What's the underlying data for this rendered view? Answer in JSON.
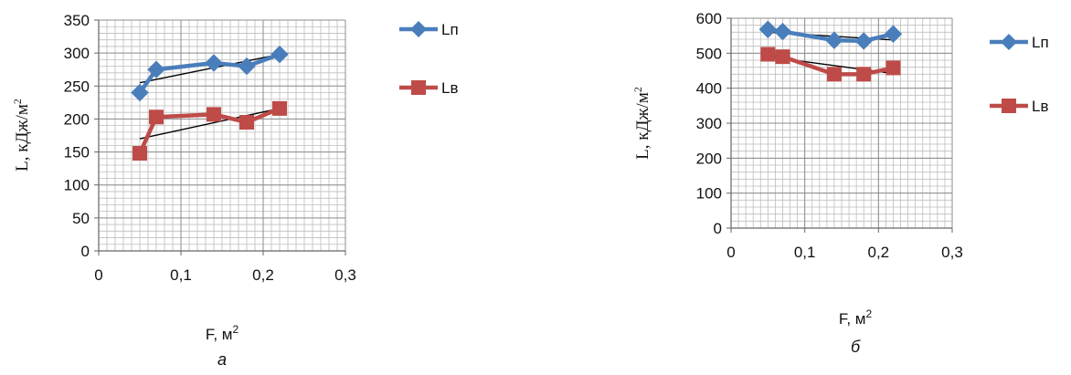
{
  "chart_data": [
    {
      "type": "line",
      "caption": "а",
      "xlabel": "F, м",
      "xlabel_sup": "2",
      "ylabel": "L, кДж/м",
      "ylabel_sup": "2",
      "xlim": [
        0,
        0.3
      ],
      "ylim": [
        0,
        350
      ],
      "xticks": [
        0,
        0.1,
        0.2,
        0.3
      ],
      "xtick_labels": [
        "0",
        "0,1",
        "0,2",
        "0,3"
      ],
      "yticks": [
        0,
        50,
        100,
        150,
        200,
        250,
        300,
        350
      ],
      "ytick_labels": [
        "0",
        "50",
        "100",
        "150",
        "200",
        "250",
        "300",
        "350"
      ],
      "grid": true,
      "legend_position": "right",
      "series": [
        {
          "name": "Lп",
          "color": "#4a7ebb",
          "marker": "diamond",
          "x": [
            0.05,
            0.07,
            0.14,
            0.18,
            0.22
          ],
          "y": [
            240,
            275,
            285,
            280,
            298
          ]
        },
        {
          "name": "Lв",
          "color": "#be4b48",
          "marker": "square",
          "x": [
            0.05,
            0.07,
            0.14,
            0.18,
            0.22
          ],
          "y": [
            148,
            203,
            207,
            195,
            216
          ]
        }
      ],
      "trendlines": [
        {
          "x": [
            0.05,
            0.22
          ],
          "y": [
            255,
            298
          ]
        },
        {
          "x": [
            0.05,
            0.22
          ],
          "y": [
            170,
            216
          ]
        }
      ]
    },
    {
      "type": "line",
      "caption": "б",
      "xlabel": "F,  м",
      "xlabel_sup": "2",
      "ylabel": "L, кДж/м",
      "ylabel_sup": "2",
      "xlim": [
        0,
        0.3
      ],
      "ylim": [
        0,
        600
      ],
      "xticks": [
        0,
        0.1,
        0.2,
        0.3
      ],
      "xtick_labels": [
        "0",
        "0,1",
        "0,2",
        "0,3"
      ],
      "yticks": [
        0,
        100,
        200,
        300,
        400,
        500,
        600
      ],
      "ytick_labels": [
        "0",
        "100",
        "200",
        "300",
        "400",
        "500",
        "600"
      ],
      "grid": true,
      "legend_position": "right",
      "series": [
        {
          "name": "Lп",
          "color": "#4a7ebb",
          "marker": "diamond",
          "x": [
            0.05,
            0.07,
            0.14,
            0.18,
            0.22
          ],
          "y": [
            568,
            562,
            537,
            535,
            555
          ]
        },
        {
          "name": "Lв",
          "color": "#be4b48",
          "marker": "square",
          "x": [
            0.05,
            0.07,
            0.14,
            0.18,
            0.22
          ],
          "y": [
            497,
            490,
            440,
            440,
            458
          ]
        }
      ],
      "trendlines": [
        {
          "x": [
            0.05,
            0.22
          ],
          "y": [
            560,
            538
          ]
        },
        {
          "x": [
            0.05,
            0.22
          ],
          "y": [
            490,
            442
          ]
        }
      ]
    }
  ]
}
